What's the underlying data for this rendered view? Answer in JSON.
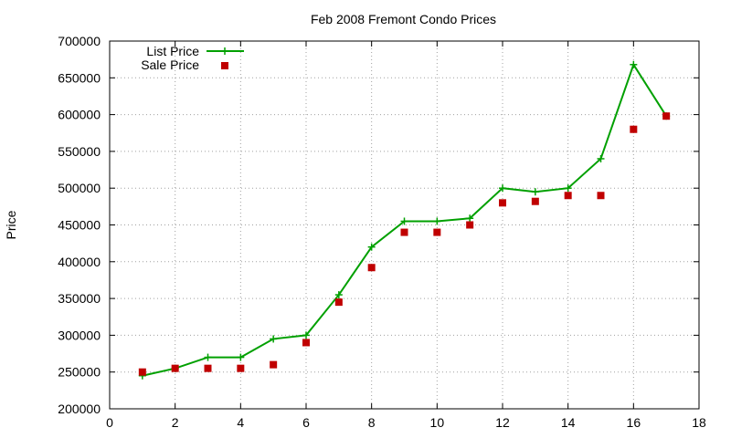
{
  "chart_data": {
    "type": "line",
    "title": "Feb 2008 Fremont Condo Prices",
    "xlabel": "",
    "ylabel": "Price",
    "xlim": [
      0,
      18
    ],
    "ylim": [
      200000,
      700000
    ],
    "xticks": [
      0,
      2,
      4,
      6,
      8,
      10,
      12,
      14,
      16,
      18
    ],
    "yticks": [
      200000,
      250000,
      300000,
      350000,
      400000,
      450000,
      500000,
      550000,
      600000,
      650000,
      700000
    ],
    "grid": true,
    "legend_position": "top-left",
    "series": [
      {
        "name": "List Price",
        "style": "line+points",
        "marker": "plus",
        "color": "#00a000",
        "x": [
          1,
          2,
          3,
          4,
          5,
          6,
          7,
          8,
          9,
          10,
          11,
          12,
          13,
          14,
          15,
          16,
          17
        ],
        "y": [
          245000,
          255000,
          270000,
          270000,
          295000,
          300000,
          355000,
          420000,
          455000,
          455000,
          459000,
          500000,
          495000,
          500000,
          540000,
          668000,
          598000
        ]
      },
      {
        "name": "Sale Price",
        "style": "points",
        "marker": "square",
        "color": "#c00000",
        "x": [
          1,
          2,
          3,
          4,
          5,
          6,
          7,
          8,
          9,
          10,
          11,
          12,
          13,
          14,
          15,
          16,
          17
        ],
        "y": [
          250000,
          255000,
          255000,
          255000,
          260000,
          290000,
          345000,
          392000,
          440000,
          440000,
          450000,
          480000,
          482000,
          490000,
          490000,
          580000,
          598000
        ]
      }
    ]
  }
}
